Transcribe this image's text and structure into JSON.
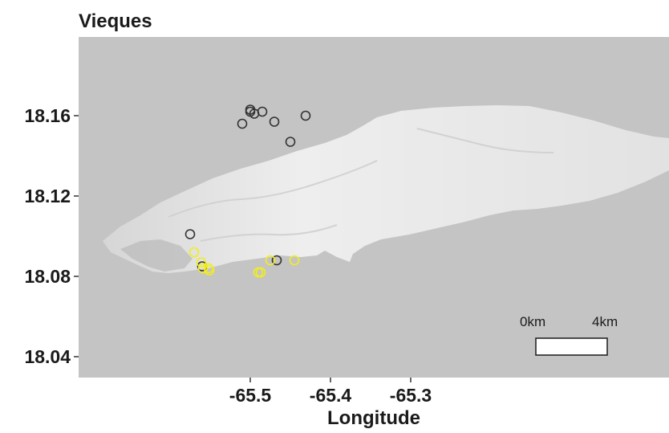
{
  "title": "Vieques",
  "xlabel": "Longitude",
  "ylabel": "",
  "x_ticks": [
    "-65.5",
    "-65.4",
    "-65.3"
  ],
  "y_ticks": [
    "18.16",
    "18.12",
    "18.08",
    "18.04"
  ],
  "scale_bar": {
    "start_label": "0km",
    "end_label": "4km"
  },
  "colors": {
    "panel_background": "#c4c4c4",
    "land": "#ececec",
    "grey_points": "#333333",
    "yellow_points": "#f2ee1c"
  },
  "chart_data": {
    "type": "scatter",
    "title": "Vieques",
    "xlabel": "Longitude",
    "ylabel": "",
    "xlim": [
      -65.58,
      -65.28
    ],
    "ylim": [
      18.03,
      18.2
    ],
    "grid": false,
    "legend": "none",
    "series": [
      {
        "color": "#333333",
        "points": [
          [
            -65.575,
            18.101
          ],
          [
            -65.56,
            18.085
          ],
          [
            -65.51,
            18.156
          ],
          [
            -65.5,
            18.162
          ],
          [
            -65.5,
            18.163
          ],
          [
            -65.495,
            18.161
          ],
          [
            -65.485,
            18.162
          ],
          [
            -65.47,
            18.157
          ],
          [
            -65.467,
            18.088
          ],
          [
            -65.45,
            18.147
          ],
          [
            -65.431,
            18.16
          ]
        ]
      },
      {
        "color": "#f2ee1c",
        "points": [
          [
            -65.57,
            18.092
          ],
          [
            -65.561,
            18.087
          ],
          [
            -65.559,
            18.084
          ],
          [
            -65.552,
            18.084
          ],
          [
            -65.551,
            18.083
          ],
          [
            -65.49,
            18.082
          ],
          [
            -65.487,
            18.082
          ],
          [
            -65.475,
            18.088
          ],
          [
            -65.445,
            18.088
          ]
        ]
      }
    ]
  }
}
